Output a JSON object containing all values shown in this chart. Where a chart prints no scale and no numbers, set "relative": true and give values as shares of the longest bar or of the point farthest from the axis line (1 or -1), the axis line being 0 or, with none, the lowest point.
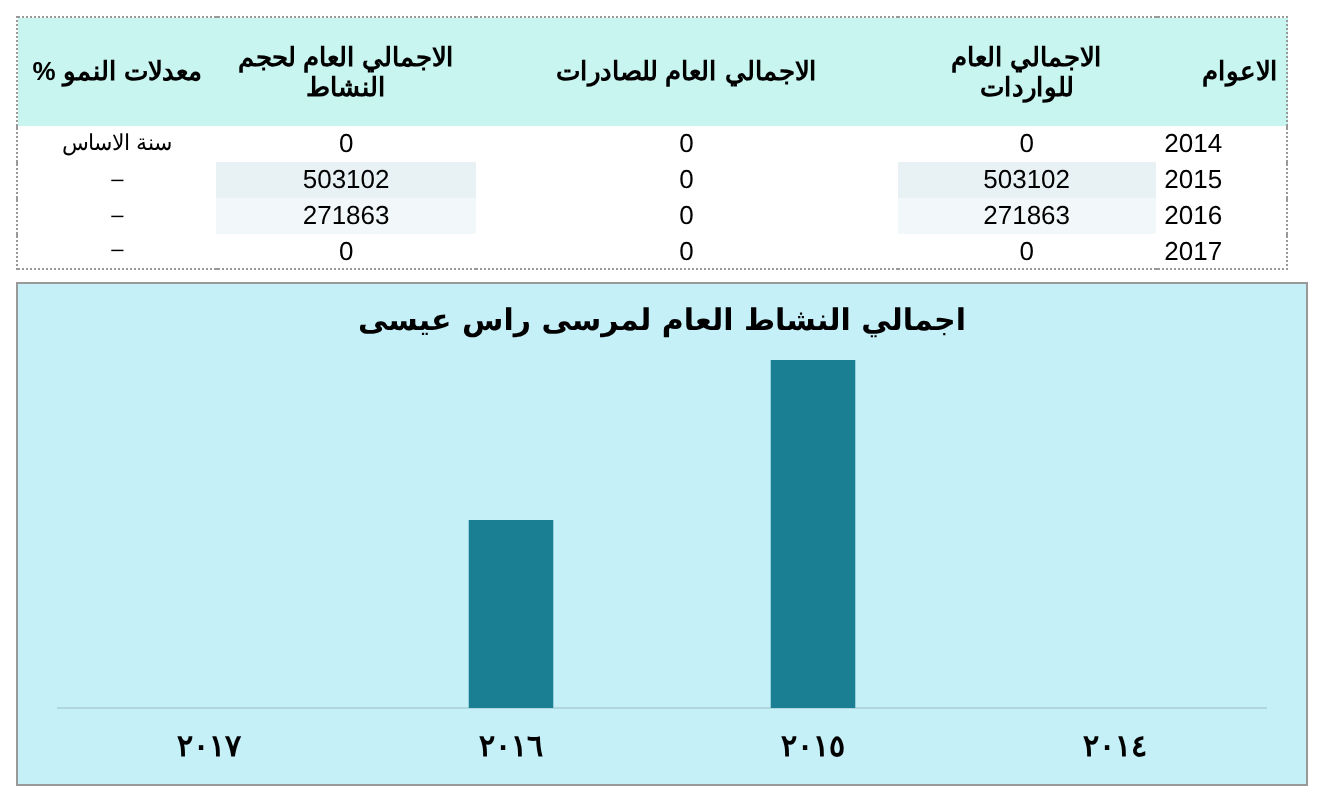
{
  "chart_data": [
    {
      "type": "heatmap",
      "ylabel": "الاعوام",
      "categories": [
        "معدلات النمو %",
        "الاجمالي العام لحجم النشاط",
        "الاجمالي العام للصادرات",
        "الاجمالي العام للواردات"
      ],
      "y_categories": [
        "2014",
        "2015",
        "2016",
        "2017"
      ],
      "cells": [
        [
          null,
          0,
          0,
          0
        ],
        [
          null,
          503102,
          0,
          503102
        ],
        [
          null,
          271863,
          0,
          271863
        ],
        [
          null,
          0,
          0,
          0
        ]
      ],
      "cell_labels": [
        [
          "سنة الاساس",
          "0",
          "0",
          "0"
        ],
        [
          "–",
          "503102",
          "0",
          "503102"
        ],
        [
          "–",
          "271863",
          "0",
          "271863"
        ],
        [
          "–",
          "0",
          "0",
          "0"
        ]
      ]
    },
    {
      "type": "bar",
      "title": "اجمالي النشاط العام لمرسى راس عيسى",
      "categories": [
        "٢٠١٧",
        "٢٠١٦",
        "٢٠١٥",
        "٢٠١٤"
      ],
      "values": [
        0,
        0.54,
        1,
        0
      ],
      "color": "#1b7f94",
      "relative": true,
      "grid": false,
      "legend": false
    }
  ]
}
